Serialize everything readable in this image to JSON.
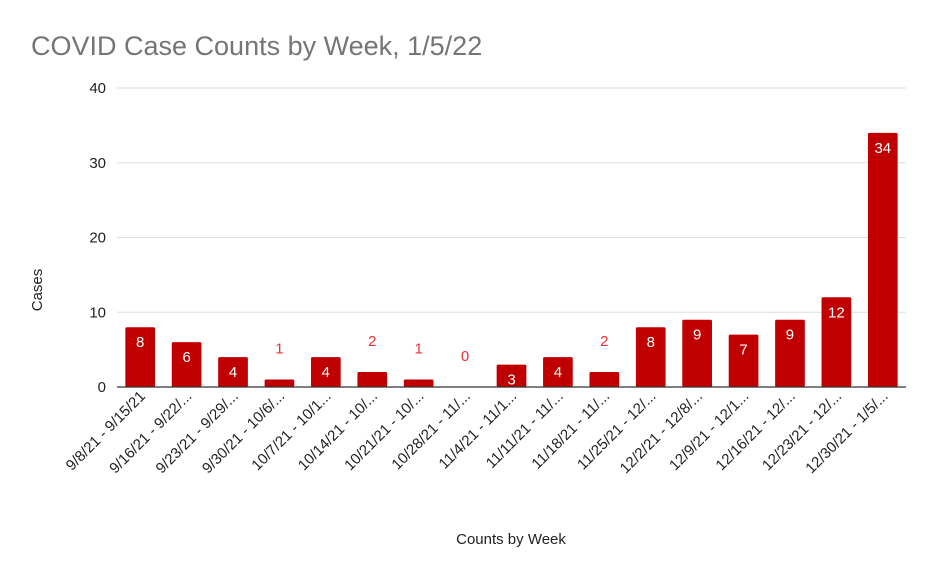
{
  "chart_data": {
    "type": "bar",
    "title": "COVID Case Counts by Week, 1/5/22",
    "xlabel": "Counts by Week",
    "ylabel": "Cases",
    "ylim": [
      0,
      40
    ],
    "yticks": [
      "0",
      "10",
      "20",
      "30",
      "40"
    ],
    "grid": true,
    "categories": [
      "9/8/21 - 9/15/21",
      "9/16/21 - 9/22/...",
      "9/23/21 - 9/29/...",
      "9/30/21 - 10/6/...",
      "10/7/21 - 10/1...",
      "10/14/21 - 10/...",
      "10/21/21 - 10/...",
      "10/28/21 - 11/...",
      "11/4/21 - 11/1...",
      "11/11/21 - 11/...",
      "11/18/21 - 11/...",
      "11/25/21 - 12/...",
      "12/2/21 - 12/8/...",
      "12/9/21 - 12/1...",
      "12/16/21 - 12/...",
      "12/23/21 - 12/...",
      "12/30/21 - 1/5/..."
    ],
    "values": [
      8,
      6,
      4,
      1,
      4,
      2,
      1,
      0,
      3,
      4,
      2,
      8,
      9,
      7,
      9,
      12,
      34
    ],
    "bar_color": "#c00000",
    "label_inside_color": "#ffffff",
    "label_outside_color": "#e8313a"
  }
}
